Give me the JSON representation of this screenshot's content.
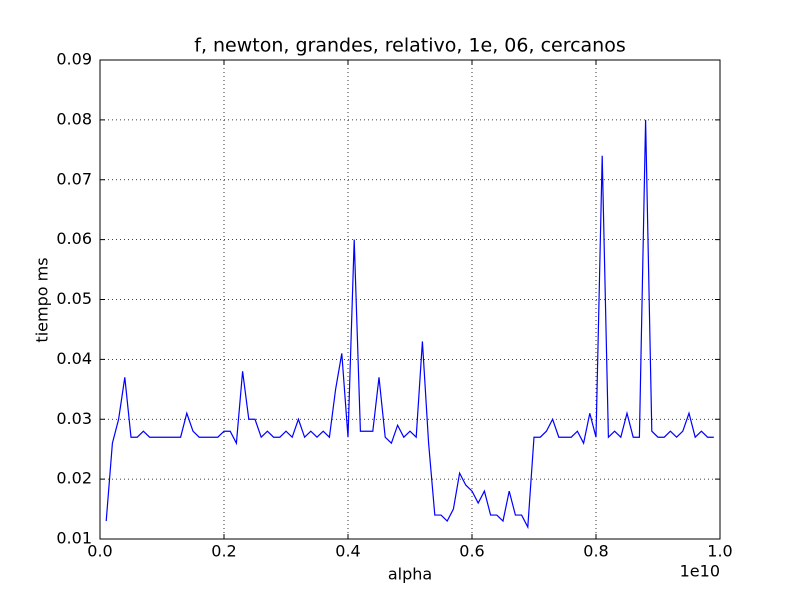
{
  "chart_data": {
    "type": "line",
    "title": "f, newton, grandes, relativo, 1e, 06, cercanos",
    "x_label": "alpha",
    "y_label": "tiempo ms",
    "x_offset_label": "1e10",
    "x": [
      0.01,
      0.02,
      0.03,
      0.04,
      0.05,
      0.06,
      0.07,
      0.08,
      0.09,
      0.1,
      0.11,
      0.12,
      0.13,
      0.14,
      0.15,
      0.16,
      0.17,
      0.18,
      0.19,
      0.2,
      0.21,
      0.22,
      0.23,
      0.24,
      0.25,
      0.26,
      0.27,
      0.28,
      0.29,
      0.3,
      0.31,
      0.32,
      0.33,
      0.34,
      0.35,
      0.36,
      0.37,
      0.38,
      0.39,
      0.4,
      0.41,
      0.42,
      0.43,
      0.44,
      0.45,
      0.46,
      0.47,
      0.48,
      0.49,
      0.5,
      0.51,
      0.52,
      0.53,
      0.54,
      0.55,
      0.56,
      0.57,
      0.58,
      0.59,
      0.6,
      0.61,
      0.62,
      0.63,
      0.64,
      0.65,
      0.66,
      0.67,
      0.68,
      0.69,
      0.7,
      0.71,
      0.72,
      0.73,
      0.74,
      0.75,
      0.76,
      0.77,
      0.78,
      0.79,
      0.8,
      0.81,
      0.82,
      0.83,
      0.84,
      0.85,
      0.86,
      0.87,
      0.88,
      0.89,
      0.9,
      0.91,
      0.92,
      0.93,
      0.94,
      0.95,
      0.96,
      0.97,
      0.98,
      0.99
    ],
    "series": [
      {
        "name": "tiempo",
        "color": "#0000ff",
        "values": [
          0.013,
          0.026,
          0.03,
          0.037,
          0.027,
          0.027,
          0.028,
          0.027,
          0.027,
          0.027,
          0.027,
          0.027,
          0.027,
          0.031,
          0.028,
          0.027,
          0.027,
          0.027,
          0.027,
          0.028,
          0.028,
          0.026,
          0.038,
          0.03,
          0.03,
          0.027,
          0.028,
          0.027,
          0.027,
          0.028,
          0.027,
          0.03,
          0.027,
          0.028,
          0.027,
          0.028,
          0.027,
          0.035,
          0.041,
          0.027,
          0.06,
          0.028,
          0.028,
          0.028,
          0.037,
          0.027,
          0.026,
          0.029,
          0.027,
          0.028,
          0.027,
          0.043,
          0.026,
          0.014,
          0.014,
          0.013,
          0.015,
          0.021,
          0.019,
          0.018,
          0.016,
          0.018,
          0.014,
          0.014,
          0.013,
          0.018,
          0.014,
          0.014,
          0.012,
          0.027,
          0.027,
          0.028,
          0.03,
          0.027,
          0.027,
          0.027,
          0.028,
          0.026,
          0.031,
          0.027,
          0.074,
          0.027,
          0.028,
          0.027,
          0.031,
          0.027,
          0.027,
          0.08,
          0.028,
          0.027,
          0.027,
          0.028,
          0.027,
          0.028,
          0.031,
          0.027,
          0.028,
          0.027,
          0.027
        ]
      }
    ],
    "xlim": [
      0,
      1
    ],
    "xticks": [
      {
        "value": 0,
        "label": "0.0"
      },
      0.2,
      0.4,
      0.6,
      0.8,
      {
        "value": 1,
        "label": "1.0"
      }
    ],
    "ylim": [
      0.01,
      0.09
    ],
    "yticks": [
      0.01,
      0.02,
      0.03,
      0.04,
      0.05,
      0.06,
      0.07,
      0.08,
      0.09
    ],
    "grid": true
  }
}
